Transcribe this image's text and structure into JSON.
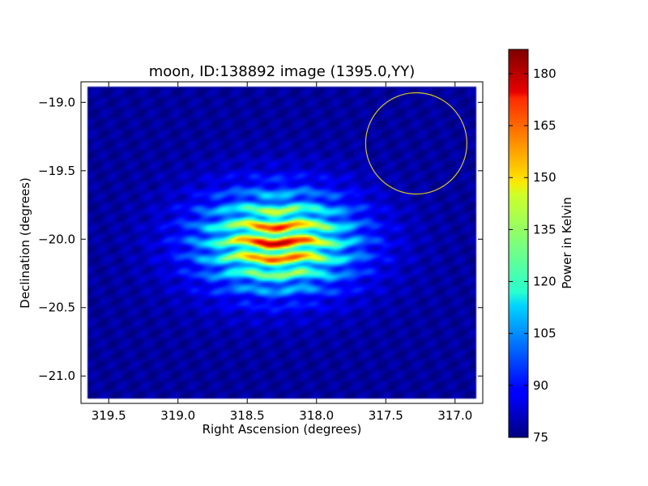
{
  "chart_data": {
    "type": "heatmap",
    "title": "moon, ID:138892 image (1395.0,YY)",
    "xlabel": "Right Ascension (degrees)",
    "ylabel": "Declination (degrees)",
    "xlim": [
      319.7,
      316.8
    ],
    "ylim": [
      -21.2,
      -18.85
    ],
    "x_ticks": [
      319.5,
      319.0,
      318.5,
      318.0,
      317.5,
      317.0
    ],
    "x_tick_labels": [
      "319.5",
      "319.0",
      "318.5",
      "318.0",
      "317.5",
      "317.0"
    ],
    "y_ticks": [
      -19.0,
      -19.5,
      -20.0,
      -20.5,
      -21.0
    ],
    "y_tick_labels": [
      "−19.0",
      "−19.5",
      "−20.0",
      "−20.5",
      "−21.0"
    ],
    "colormap": "jet",
    "colorbar": {
      "label": "Power in Kelvin",
      "min": 75,
      "max": 187,
      "ticks": [
        75,
        90,
        105,
        120,
        135,
        150,
        165,
        180
      ],
      "tick_labels": [
        "75",
        "90",
        "105",
        "120",
        "135",
        "150",
        "165",
        "180"
      ]
    },
    "image_extent": {
      "ra": [
        319.65,
        316.85
      ],
      "dec": [
        -21.17,
        -18.88
      ]
    },
    "background_level": 78,
    "source": {
      "center_ra": 318.28,
      "center_dec": -20.02,
      "sigma_ra": 0.42,
      "sigma_dec": 0.26,
      "peak": 182,
      "fringe_period_dec": 0.12
    },
    "circle": {
      "center_ra": 317.28,
      "center_dec": -19.3,
      "radius_deg": 0.37,
      "color": "#d4c22a"
    }
  }
}
